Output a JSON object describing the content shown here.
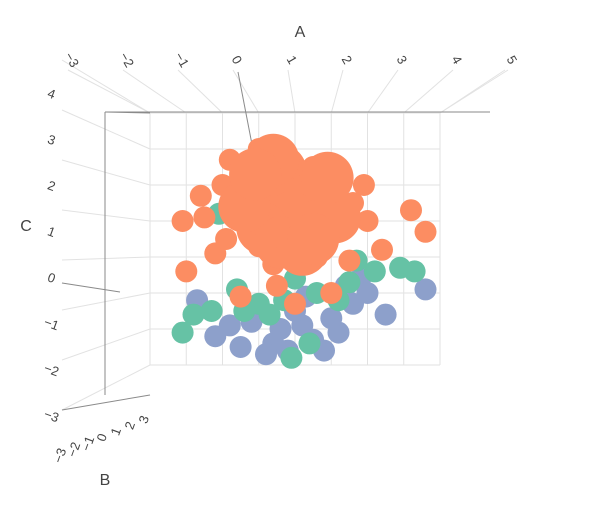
{
  "chart_data": {
    "type": "scatter",
    "projection": "3d",
    "title": "",
    "axes": {
      "x": {
        "label": "A",
        "ticks": [
          "−3",
          "−2",
          "−1",
          "0",
          "1",
          "2",
          "3",
          "4",
          "5"
        ],
        "range": [
          -3,
          5
        ]
      },
      "y": {
        "label": "B",
        "ticks": [
          "−3",
          "−2",
          "−1",
          "0",
          "1",
          "2",
          "3"
        ],
        "range": [
          -3,
          3
        ]
      },
      "z": {
        "label": "C",
        "ticks": [
          "−3",
          "−2",
          "−1",
          "0",
          "1",
          "2",
          "3",
          "4"
        ],
        "range": [
          -3,
          4
        ]
      }
    },
    "grid": true,
    "legend": "none",
    "series": [
      {
        "color": "#8da0cb",
        "points": [
          [
            1.2,
            0,
            -1.9
          ],
          [
            2.2,
            0,
            -2.1
          ],
          [
            0.4,
            0,
            -2.4
          ],
          [
            -0.5,
            0,
            -2.5
          ],
          [
            1.8,
            0,
            -2.6
          ],
          [
            0.2,
            0,
            -2.7
          ],
          [
            3.5,
            0,
            -1.6
          ],
          [
            4.6,
            0,
            -0.9
          ],
          [
            2.6,
            0,
            -1.3
          ],
          [
            -1.7,
            0,
            -1.2
          ],
          [
            1.0,
            0,
            -1.5
          ],
          [
            0.6,
            0,
            -2.0
          ],
          [
            1.5,
            0,
            -2.3
          ],
          [
            -0.2,
            0,
            -1.8
          ],
          [
            2.0,
            0,
            -1.7
          ],
          [
            -1.2,
            0,
            -2.2
          ],
          [
            2.8,
            0,
            -0.6
          ],
          [
            0.8,
            0,
            -2.6
          ],
          [
            1.3,
            0,
            -1.1
          ],
          [
            2.4,
            0,
            -0.8
          ],
          [
            3.0,
            0,
            -1.0
          ],
          [
            -0.8,
            0,
            -1.9
          ]
        ]
      },
      {
        "color": "#66c2a5",
        "points": [
          [
            1.6,
            0,
            -1.0
          ],
          [
            0.0,
            0,
            -1.3
          ],
          [
            -1.3,
            0,
            -1.5
          ],
          [
            -2.1,
            0,
            -2.1
          ],
          [
            0.9,
            0,
            -2.8
          ],
          [
            3.9,
            0,
            -0.3
          ],
          [
            4.3,
            0,
            -0.4
          ],
          [
            2.7,
            0,
            -0.1
          ],
          [
            -1.1,
            0,
            1.2
          ],
          [
            1.4,
            0,
            -2.4
          ],
          [
            1.9,
            0,
            0.5
          ],
          [
            2.5,
            0,
            -0.7
          ],
          [
            -0.4,
            0,
            -1.5
          ],
          [
            0.7,
            0,
            -1.2
          ],
          [
            -0.6,
            0,
            -0.9
          ],
          [
            1.0,
            0,
            -0.6
          ],
          [
            3.2,
            0,
            -0.4
          ],
          [
            0.3,
            0,
            -1.6
          ],
          [
            2.2,
            0,
            -1.2
          ],
          [
            -1.8,
            0,
            -1.6
          ]
        ]
      },
      {
        "color": "#fc8d62",
        "points": [
          [
            0.0,
            0,
            3.0
          ],
          [
            1.5,
            0,
            2.5
          ],
          [
            2.3,
            0,
            2.2
          ],
          [
            -1.0,
            0,
            2.0
          ],
          [
            -1.5,
            0,
            1.1
          ],
          [
            -2.1,
            0,
            1.0
          ],
          [
            3.0,
            0,
            1.0
          ],
          [
            4.2,
            0,
            1.3
          ],
          [
            4.6,
            0,
            0.7
          ],
          [
            0.5,
            0,
            -0.8
          ],
          [
            -0.5,
            0,
            -1.1
          ],
          [
            2.0,
            0,
            -1.0
          ],
          [
            1.0,
            0,
            -1.3
          ],
          [
            2.5,
            0,
            -0.1
          ],
          [
            -0.8,
            0,
            2.7
          ],
          [
            0.8,
            0,
            2.8
          ],
          [
            1.8,
            0,
            1.8
          ],
          [
            0.2,
            0,
            1.5
          ],
          [
            -0.3,
            0,
            0.9
          ],
          [
            1.2,
            0,
            1.2
          ],
          [
            2.6,
            0,
            1.5
          ],
          [
            -1.2,
            0,
            0.1
          ],
          [
            -2.0,
            0,
            -0.4
          ],
          [
            0.0,
            0,
            0.3
          ],
          [
            3.4,
            0,
            0.2
          ],
          [
            1.6,
            0,
            0.0
          ],
          [
            0.7,
            0,
            2.0
          ],
          [
            -1.6,
            0,
            1.7
          ],
          [
            2.9,
            0,
            2.0
          ],
          [
            0.4,
            0,
            -0.2
          ],
          [
            -0.9,
            0,
            0.5
          ],
          [
            1.9,
            0,
            0.7
          ]
        ]
      }
    ]
  }
}
